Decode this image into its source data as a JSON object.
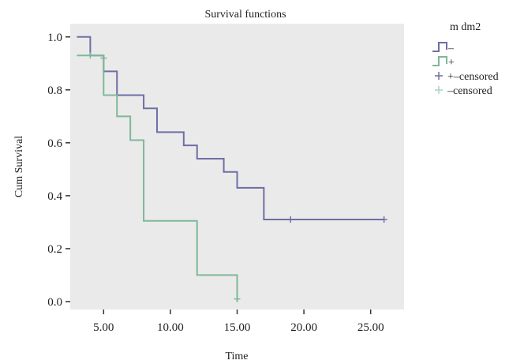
{
  "chart_data": {
    "type": "line",
    "subtype": "kaplan-meier-survival",
    "title": "Survival functions",
    "xlabel": "Time",
    "ylabel": "Cum Survival",
    "xlim": [
      2.5,
      27.5
    ],
    "ylim": [
      -0.03,
      1.05
    ],
    "x_ticks": [
      5,
      10,
      15,
      20,
      25
    ],
    "x_tick_labels": [
      "5.00",
      "10.00",
      "15.00",
      "20.00",
      "25.00"
    ],
    "y_ticks": [
      0.0,
      0.2,
      0.4,
      0.6,
      0.8,
      1.0
    ],
    "y_tick_labels": [
      "0.0",
      "0.2",
      "0.4",
      "0.6",
      "0.8",
      "1.0"
    ],
    "grid": false,
    "background": "#eaeaea",
    "legend": {
      "title": "m dm2",
      "position": "top-right",
      "entries": [
        {
          "label": "–",
          "kind": "step-line",
          "color": "#6f6ea5"
        },
        {
          "label": "+",
          "kind": "step-line",
          "color": "#7fb899"
        },
        {
          "label": "+–censored",
          "kind": "censor-mark",
          "color": "#6f6ea5"
        },
        {
          "label": "–censored",
          "kind": "censor-mark",
          "color": "#a9d5bd"
        }
      ]
    },
    "series": [
      {
        "name": "–",
        "color": "#6f6ea5",
        "steps": [
          [
            3,
            1.0
          ],
          [
            4,
            0.93
          ],
          [
            5,
            0.87
          ],
          [
            6,
            0.78
          ],
          [
            8,
            0.73
          ],
          [
            9,
            0.64
          ],
          [
            11,
            0.59
          ],
          [
            12,
            0.54
          ],
          [
            14,
            0.49
          ],
          [
            15,
            0.43
          ],
          [
            17,
            0.31
          ],
          [
            26,
            0.31
          ]
        ],
        "censored": [
          [
            19,
            0.31
          ],
          [
            26,
            0.31
          ]
        ]
      },
      {
        "name": "+",
        "color": "#7fb899",
        "steps": [
          [
            3,
            0.93
          ],
          [
            5,
            0.78
          ],
          [
            6,
            0.7
          ],
          [
            7,
            0.61
          ],
          [
            8,
            0.305
          ],
          [
            12,
            0.1
          ],
          [
            15,
            0.0
          ]
        ],
        "censored": [
          [
            4,
            0.93
          ],
          [
            5,
            0.92
          ],
          [
            15,
            0.01
          ]
        ]
      }
    ]
  }
}
